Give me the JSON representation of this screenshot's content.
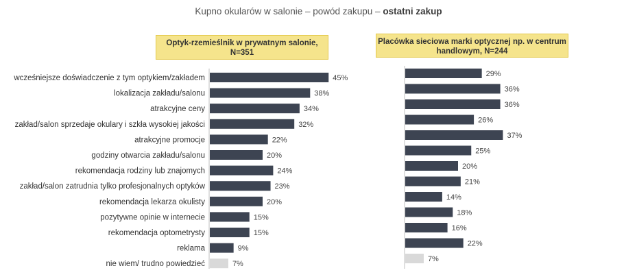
{
  "title": {
    "main": "Kupno okularów w salonie – powód zakupu – ",
    "bold": "ostatni zakup"
  },
  "colors": {
    "bar": "#3d4452",
    "bar_light": "#d9d9d9",
    "axis": "#bfbfbf",
    "label_bg": "#f5e48c"
  },
  "chart_data": {
    "type": "bar",
    "orientation": "horizontal",
    "categories": [
      "wcześniejsze doświadczenie z tym optykiem/zakładem",
      "lokalizacja zakładu/salonu",
      "atrakcyjne ceny",
      "zakład/salon sprzedaje okulary i szkła wysokiej jakości",
      "atrakcyjne promocje",
      "godziny otwarcia zakładu/salonu",
      "rekomendacja rodziny lub znajomych",
      "zakład/salon zatrudnia tylko profesjonalnych optyków",
      "rekomendacja lekarza okulisty",
      "pozytywne opinie w internecie",
      "rekomendacja optometrysty",
      "reklama",
      "nie wiem/ trudno powiedzieć"
    ],
    "series": [
      {
        "name": "Optyk-rzemieślnik w prywatnym salonie, N=351",
        "values": [
          45,
          38,
          34,
          32,
          22,
          20,
          24,
          23,
          20,
          15,
          15,
          9,
          7
        ],
        "labels": [
          "45%",
          "38%",
          "34%",
          "32%",
          "22%",
          "20%",
          "24%",
          "23%",
          "20%",
          "15%",
          "15%",
          "9%",
          "7%"
        ]
      },
      {
        "name": "Placówka sieciowa marki optycznej np. w centrum handlowym, N=244",
        "values": [
          29,
          36,
          36,
          26,
          37,
          25,
          20,
          21,
          14,
          18,
          16,
          22,
          7
        ],
        "labels": [
          "29%",
          "36%",
          "36%",
          "26%",
          "37%",
          "25%",
          "20%",
          "21%",
          "14%",
          "18%",
          "16%",
          "22%",
          "7%"
        ]
      }
    ],
    "highlight_last_category": true
  }
}
